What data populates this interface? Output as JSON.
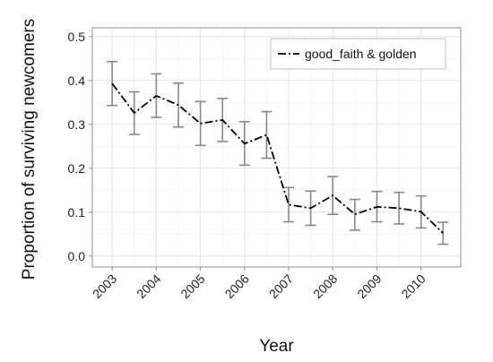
{
  "chart_data": {
    "type": "line",
    "title": "",
    "xlabel": "Year",
    "ylabel": "Proportion of surviving newcomers",
    "x_tick_labels": [
      "2003",
      "2004",
      "2005",
      "2006",
      "2007",
      "2008",
      "2009",
      "2010"
    ],
    "x_ticks": [
      2003,
      2004,
      2005,
      2006,
      2007,
      2008,
      2009,
      2010
    ],
    "y_tick_labels": [
      "0.0",
      "0.1",
      "0.2",
      "0.3",
      "0.4",
      "0.5"
    ],
    "y_ticks": [
      0.0,
      0.1,
      0.2,
      0.3,
      0.4,
      0.5
    ],
    "xlim": [
      2002.55,
      2010.9
    ],
    "ylim": [
      -0.025,
      0.52
    ],
    "grid": true,
    "legend_position": "top-right",
    "series": [
      {
        "name": "good_faith & golden",
        "line_style": "dash-dot",
        "color": "#000000",
        "errorbar_color": "#888888",
        "points": [
          {
            "x": 2003.0,
            "y": 0.393,
            "lo": 0.343,
            "hi": 0.443
          },
          {
            "x": 2003.5,
            "y": 0.326,
            "lo": 0.277,
            "hi": 0.374
          },
          {
            "x": 2004.0,
            "y": 0.365,
            "lo": 0.316,
            "hi": 0.415
          },
          {
            "x": 2004.5,
            "y": 0.344,
            "lo": 0.294,
            "hi": 0.394
          },
          {
            "x": 2005.0,
            "y": 0.302,
            "lo": 0.252,
            "hi": 0.352
          },
          {
            "x": 2005.5,
            "y": 0.31,
            "lo": 0.261,
            "hi": 0.359
          },
          {
            "x": 2006.0,
            "y": 0.256,
            "lo": 0.207,
            "hi": 0.306
          },
          {
            "x": 2006.5,
            "y": 0.276,
            "lo": 0.223,
            "hi": 0.329
          },
          {
            "x": 2007.0,
            "y": 0.117,
            "lo": 0.078,
            "hi": 0.156
          },
          {
            "x": 2007.5,
            "y": 0.109,
            "lo": 0.07,
            "hi": 0.148
          },
          {
            "x": 2008.0,
            "y": 0.138,
            "lo": 0.095,
            "hi": 0.181
          },
          {
            "x": 2008.5,
            "y": 0.095,
            "lo": 0.059,
            "hi": 0.129
          },
          {
            "x": 2009.0,
            "y": 0.112,
            "lo": 0.078,
            "hi": 0.147
          },
          {
            "x": 2009.5,
            "y": 0.109,
            "lo": 0.073,
            "hi": 0.145
          },
          {
            "x": 2010.0,
            "y": 0.101,
            "lo": 0.064,
            "hi": 0.137
          },
          {
            "x": 2010.5,
            "y": 0.052,
            "lo": 0.027,
            "hi": 0.077
          }
        ]
      }
    ]
  }
}
